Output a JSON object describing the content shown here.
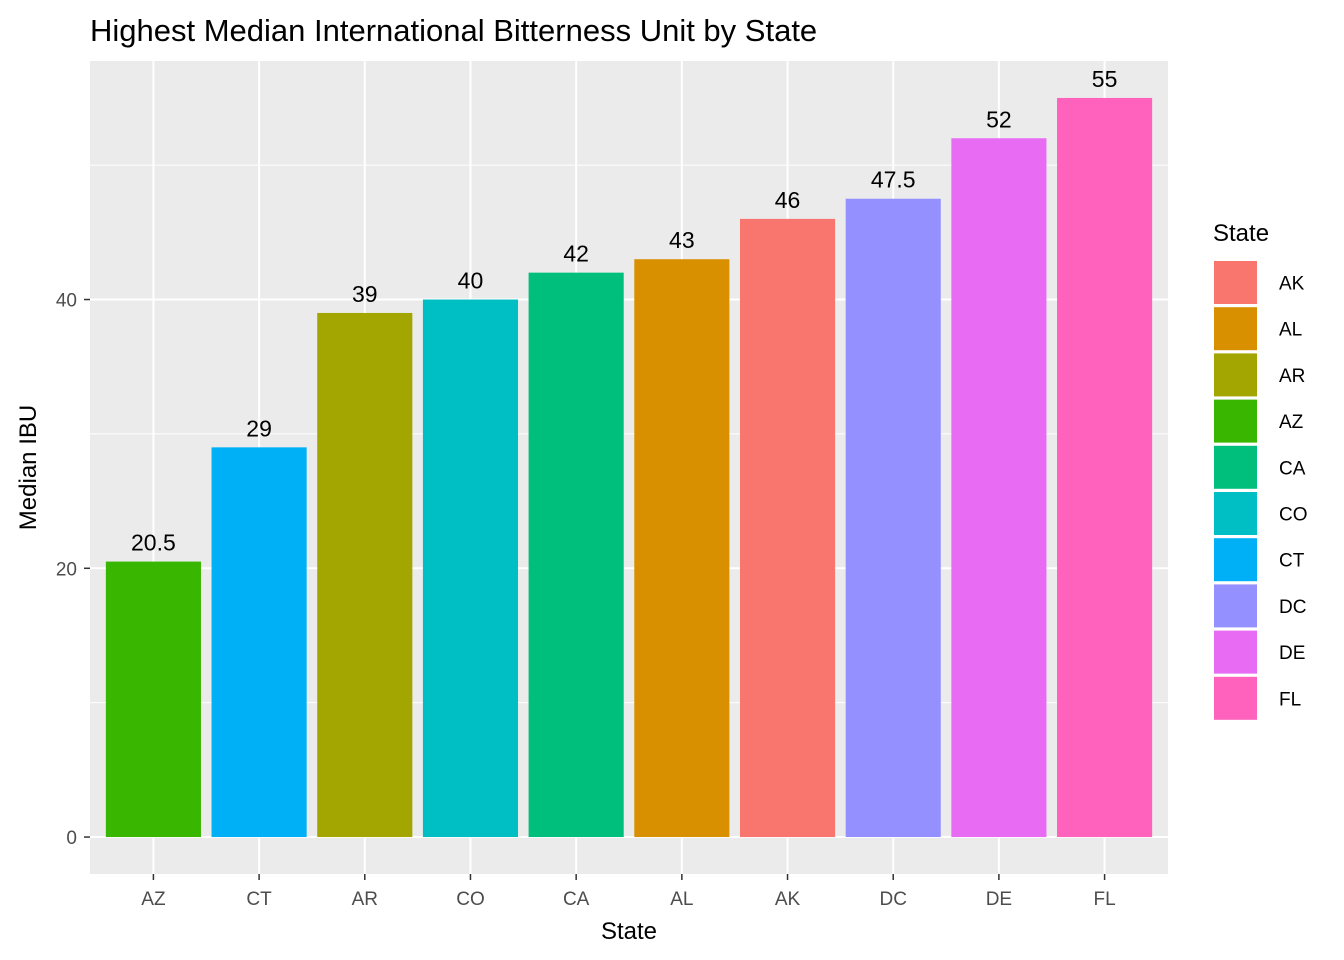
{
  "chart_data": {
    "type": "bar",
    "title": "Highest Median International Bitterness Unit by State",
    "xlabel": "State",
    "ylabel": "Median IBU",
    "categories": [
      "AZ",
      "CT",
      "AR",
      "CO",
      "CA",
      "AL",
      "AK",
      "DC",
      "DE",
      "FL"
    ],
    "values": [
      20.5,
      29,
      39,
      40,
      42,
      43,
      46,
      47.5,
      52,
      55
    ],
    "value_labels": [
      "20.5",
      "29",
      "39",
      "40",
      "42",
      "43",
      "46",
      "47.5",
      "52",
      "55"
    ],
    "colors": [
      "#39B600",
      "#00B0F6",
      "#A3A500",
      "#00BFC4",
      "#00BF7D",
      "#D89000",
      "#F8766D",
      "#9590FF",
      "#E76BF3",
      "#FF62BC"
    ],
    "ylim": [
      -2.75,
      57.75
    ],
    "y_ticks": [
      0,
      20,
      40
    ],
    "y_tick_labels": [
      "0",
      "20",
      "40"
    ],
    "grid": true,
    "background": "#EBEBEB",
    "legend": {
      "title": "State",
      "position": "right",
      "items": [
        {
          "label": "AK",
          "color": "#F8766D"
        },
        {
          "label": "AL",
          "color": "#D89000"
        },
        {
          "label": "AR",
          "color": "#A3A500"
        },
        {
          "label": "AZ",
          "color": "#39B600"
        },
        {
          "label": "CA",
          "color": "#00BF7D"
        },
        {
          "label": "CO",
          "color": "#00BFC4"
        },
        {
          "label": "CT",
          "color": "#00B0F6"
        },
        {
          "label": "DC",
          "color": "#9590FF"
        },
        {
          "label": "DE",
          "color": "#E76BF3"
        },
        {
          "label": "FL",
          "color": "#FF62BC"
        }
      ]
    }
  }
}
